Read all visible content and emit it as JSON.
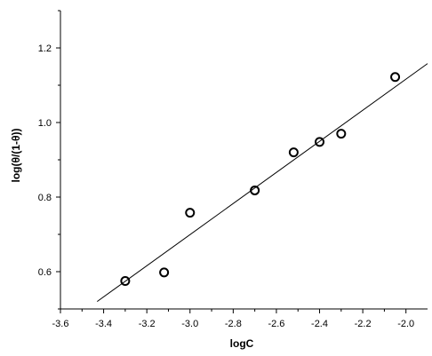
{
  "chart_data": {
    "type": "scatter",
    "title": "",
    "xlabel": "logC",
    "ylabel": "log(θ/(1-θ))",
    "xlim": [
      -3.6,
      -1.9
    ],
    "ylim": [
      0.5,
      1.3
    ],
    "x_ticks": [
      -3.6,
      -3.4,
      -3.2,
      -3.0,
      -2.8,
      -2.6,
      -2.4,
      -2.2,
      -2.0
    ],
    "x_tick_labels": [
      "-3.6",
      "-3.4",
      "-3.2",
      "-3.0",
      "-2.8",
      "-2.6",
      "-2.4",
      "-2.2",
      "-2.0"
    ],
    "y_ticks": [
      0.6,
      0.8,
      1.0,
      1.2
    ],
    "y_tick_labels": [
      "0.6",
      "0.8",
      "1.0",
      "1.2"
    ],
    "grid": false,
    "legend": "none",
    "series": [
      {
        "points": [
          {
            "x": -3.3,
            "y": 0.575
          },
          {
            "x": -3.12,
            "y": 0.598
          },
          {
            "x": -3.0,
            "y": 0.758
          },
          {
            "x": -2.7,
            "y": 0.818
          },
          {
            "x": -2.52,
            "y": 0.92
          },
          {
            "x": -2.4,
            "y": 0.948
          },
          {
            "x": -2.3,
            "y": 0.97
          },
          {
            "x": -2.05,
            "y": 1.122
          }
        ]
      }
    ],
    "fit_line": {
      "x": [
        -3.43,
        -1.9
      ],
      "y": [
        0.52,
        1.158
      ]
    },
    "colors": {
      "marker_stroke": "#000000",
      "line": "#000000",
      "axis": "#000000"
    }
  }
}
